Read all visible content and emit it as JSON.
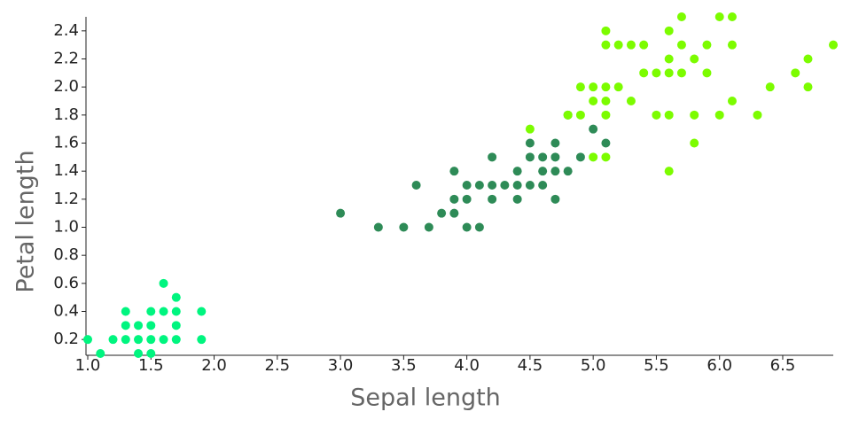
{
  "chart_data": {
    "type": "scatter",
    "x_label": "Sepal length",
    "y_label": "Petal length",
    "xlim": [
      1.0,
      6.9
    ],
    "ylim": [
      0.1,
      2.5
    ],
    "xticks": [
      {
        "value": 1.0,
        "label": "1.0"
      },
      1.5,
      {
        "value": 2.0,
        "label": "2.0"
      },
      2.5,
      {
        "value": 3.0,
        "label": "3.0"
      },
      3.5,
      {
        "value": 4.0,
        "label": "4.0"
      },
      4.5,
      {
        "value": 5.0,
        "label": "5.0"
      },
      5.5,
      {
        "value": 6.0,
        "label": "6.0"
      },
      6.5
    ],
    "yticks": [
      0.2,
      0.4,
      0.6,
      0.8,
      {
        "value": 1.0,
        "label": "1.0"
      },
      1.2,
      1.4,
      1.6,
      1.8,
      {
        "value": 2.0,
        "label": "2.0"
      },
      2.2,
      2.4
    ],
    "series": [
      {
        "color": "#00f57f",
        "x": [
          1.0,
          1.1,
          1.2,
          1.3,
          1.3,
          1.3,
          1.4,
          1.4,
          1.4,
          1.5,
          1.5,
          1.5,
          1.5,
          1.6,
          1.6,
          1.6,
          1.7,
          1.7,
          1.7,
          1.7,
          1.9,
          1.9
        ],
        "y": [
          0.2,
          0.1,
          0.2,
          0.2,
          0.3,
          0.4,
          0.1,
          0.2,
          0.3,
          0.1,
          0.2,
          0.3,
          0.4,
          0.2,
          0.4,
          0.6,
          0.2,
          0.3,
          0.4,
          0.5,
          0.2,
          0.4
        ]
      },
      {
        "color": "#2e8b57",
        "x": [
          3.0,
          3.3,
          3.5,
          3.6,
          3.7,
          3.8,
          3.9,
          3.9,
          3.9,
          4.0,
          4.0,
          4.0,
          4.1,
          4.1,
          4.2,
          4.2,
          4.2,
          4.3,
          4.4,
          4.4,
          4.4,
          4.5,
          4.5,
          4.5,
          4.6,
          4.6,
          4.6,
          4.7,
          4.7,
          4.7,
          4.7,
          4.8,
          4.8,
          4.9,
          5.0,
          5.1
        ],
        "y": [
          1.1,
          1.0,
          1.0,
          1.3,
          1.0,
          1.1,
          1.1,
          1.2,
          1.4,
          1.0,
          1.2,
          1.3,
          1.0,
          1.3,
          1.2,
          1.3,
          1.5,
          1.3,
          1.2,
          1.3,
          1.4,
          1.3,
          1.5,
          1.6,
          1.3,
          1.4,
          1.5,
          1.2,
          1.4,
          1.5,
          1.6,
          1.4,
          1.8,
          1.5,
          1.7,
          1.6
        ]
      },
      {
        "color": "#7cfc00",
        "x": [
          4.5,
          4.8,
          4.9,
          4.9,
          5.0,
          5.0,
          5.0,
          5.1,
          5.1,
          5.1,
          5.1,
          5.1,
          5.1,
          5.2,
          5.2,
          5.3,
          5.3,
          5.4,
          5.4,
          5.5,
          5.5,
          5.6,
          5.6,
          5.6,
          5.6,
          5.6,
          5.7,
          5.7,
          5.7,
          5.8,
          5.8,
          5.8,
          5.9,
          5.9,
          6.0,
          6.0,
          6.1,
          6.1,
          6.1,
          6.3,
          6.4,
          6.6,
          6.7,
          6.7,
          6.9
        ],
        "y": [
          1.7,
          1.8,
          1.8,
          2.0,
          1.5,
          1.9,
          2.0,
          1.5,
          1.8,
          1.9,
          2.0,
          2.3,
          2.4,
          2.0,
          2.3,
          1.9,
          2.3,
          2.1,
          2.3,
          1.8,
          2.1,
          1.4,
          1.8,
          2.1,
          2.2,
          2.4,
          2.1,
          2.3,
          2.5,
          1.6,
          1.8,
          2.2,
          2.1,
          2.3,
          1.8,
          2.5,
          1.9,
          2.3,
          2.5,
          1.8,
          2.0,
          2.1,
          2.0,
          2.2,
          2.3
        ]
      }
    ]
  }
}
